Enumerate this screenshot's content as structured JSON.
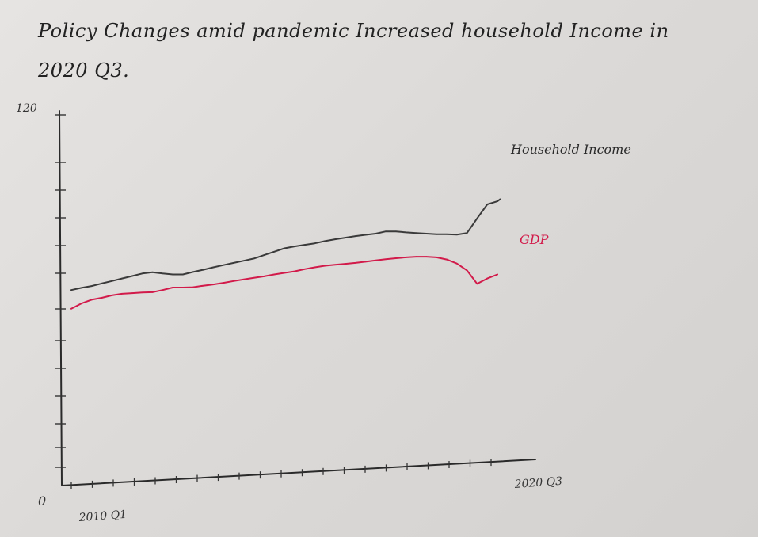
{
  "chart_data": {
    "type": "line",
    "title": "Policy Changes amid pandemic Increased household Income in 2020 Q3.",
    "x_start_label": "2010 Q1",
    "x_end_label": "2020 Q3",
    "ylim": [
      0,
      120
    ],
    "y_tick_labels": [
      "0",
      "120"
    ],
    "grid": false,
    "x": [
      "2010 Q1",
      "2010 Q2",
      "2010 Q3",
      "2010 Q4",
      "2011 Q1",
      "2011 Q2",
      "2011 Q3",
      "2011 Q4",
      "2012 Q1",
      "2012 Q2",
      "2012 Q3",
      "2012 Q4",
      "2013 Q1",
      "2013 Q2",
      "2013 Q3",
      "2013 Q4",
      "2014 Q1",
      "2014 Q2",
      "2014 Q3",
      "2014 Q4",
      "2015 Q1",
      "2015 Q2",
      "2015 Q3",
      "2015 Q4",
      "2016 Q1",
      "2016 Q2",
      "2016 Q3",
      "2016 Q4",
      "2017 Q1",
      "2017 Q2",
      "2017 Q3",
      "2017 Q4",
      "2018 Q1",
      "2018 Q2",
      "2018 Q3",
      "2018 Q4",
      "2019 Q1",
      "2019 Q2",
      "2019 Q3",
      "2019 Q4",
      "2020 Q1",
      "2020 Q2",
      "2020 Q3"
    ],
    "series": [
      {
        "name": "Household Income",
        "color": "#3a3a3a",
        "values": [
          62.5,
          63.2,
          63.8,
          64.6,
          65.4,
          66.2,
          67.0,
          67.8,
          68.2,
          67.8,
          67.5,
          67.5,
          68.3,
          69.0,
          69.8,
          70.5,
          71.2,
          71.9,
          72.6,
          73.7,
          74.8,
          75.9,
          76.5,
          77.0,
          77.5,
          78.2,
          78.8,
          79.3,
          79.8,
          80.2,
          80.6,
          81.3,
          81.3,
          81.0,
          80.8,
          80.6,
          80.4,
          80.4,
          80.3,
          80.8,
          85.5,
          90.0,
          91.0
        ]
      },
      {
        "name": "GDP",
        "color": "#d21a4a",
        "values": [
          56.5,
          58.2,
          59.4,
          60.0,
          60.8,
          61.3,
          61.5,
          61.7,
          61.8,
          62.5,
          63.3,
          63.3,
          63.4,
          63.9,
          64.3,
          64.8,
          65.4,
          65.9,
          66.4,
          66.9,
          67.5,
          68.0,
          68.5,
          69.2,
          69.8,
          70.3,
          70.6,
          70.9,
          71.2,
          71.6,
          72.0,
          72.4,
          72.7,
          73.0,
          73.2,
          73.2,
          73.0,
          72.3,
          71.0,
          68.8,
          64.5,
          66.2,
          67.5
        ]
      }
    ]
  }
}
